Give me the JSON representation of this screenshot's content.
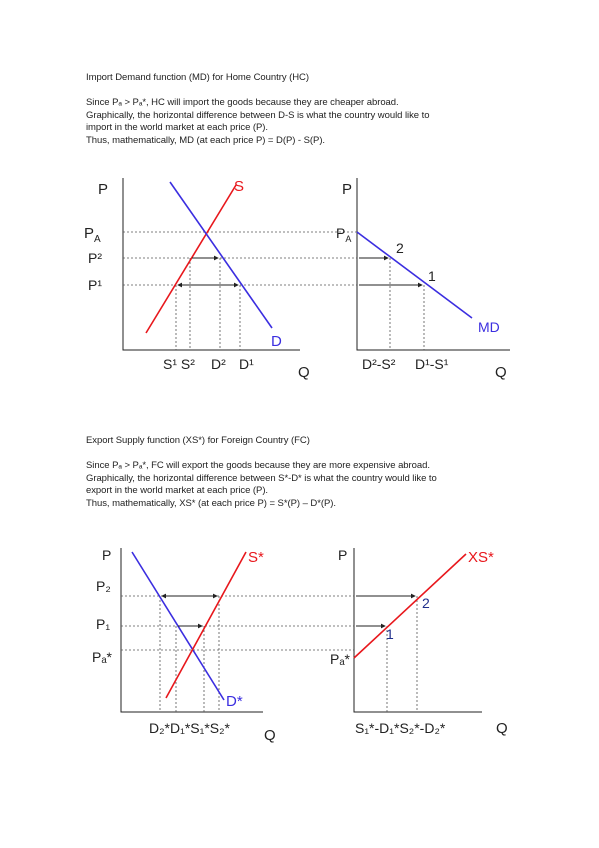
{
  "section1": {
    "heading": "Import Demand function (MD) for Home Country (HC)",
    "lines": [
      "Since Pₐ > Pₐ*, HC will import the goods because they are cheaper abroad.",
      "Graphically, the horizontal difference between D-S is what the country would like to",
      "import in the world market at each price (P).",
      "Thus, mathematically, MD (at each price P) = D(P) - S(P)."
    ]
  },
  "section2": {
    "heading": "Export Supply function (XS*) for Foreign Country (FC)",
    "lines": [
      "Since Pₐ > Pₐ*, FC will export the goods because they are more expensive abroad.",
      "Graphically, the horizontal difference between S*-D* is what the country would like to",
      "export in the world market at each price (P).",
      "Thus, mathematically, XS* (at each price P) = S*(P) – D*(P)."
    ]
  },
  "figure1": {
    "left": {
      "y_axis": "P",
      "x_axis": "Q",
      "supply_label": "S",
      "demand_label": "D",
      "price_labels": [
        "P",
        "A",
        "P²",
        "P¹"
      ],
      "q_labels": [
        "S¹ S²",
        "D²",
        "D¹"
      ]
    },
    "right": {
      "y_axis": "P",
      "x_axis": "Q",
      "price_label_main": "P",
      "price_label_sub": "A",
      "curve_label": "MD",
      "point_labels": [
        "2",
        "1"
      ],
      "q_labels": [
        "D²-S²",
        "D¹-S¹"
      ]
    }
  },
  "figure2": {
    "left": {
      "y_axis": "P",
      "x_axis": "Q",
      "supply_label": "S*",
      "demand_label": "D*",
      "price_labels": [
        "P₂",
        "P₁",
        "Pₐ*"
      ],
      "q_labels": [
        "D₂*D₁*S₁*S₂*"
      ]
    },
    "right": {
      "y_axis": "P",
      "x_axis": "Q",
      "price_label": "Pₐ*",
      "curve_label": "XS*",
      "point_labels": [
        "2",
        "1"
      ],
      "q_labels": [
        "S₁*-D₁*S₂*-D₂*"
      ]
    }
  },
  "colors": {
    "red": "#e8171c",
    "blue": "#3b2ee0",
    "dark_blue": "#1f2f8c",
    "text": "#222222"
  }
}
